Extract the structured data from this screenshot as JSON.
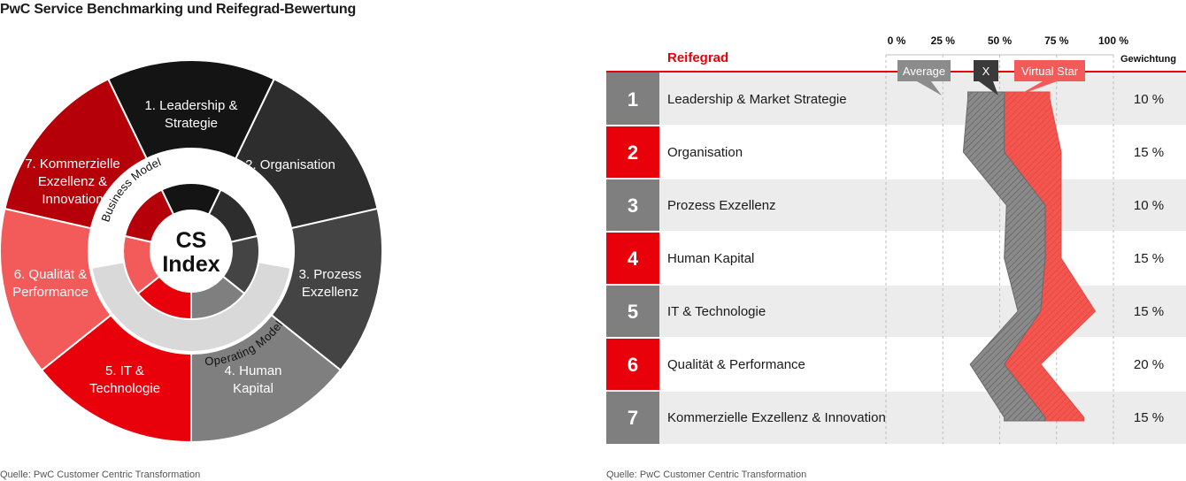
{
  "title": "PwC Service Benchmarking und Reifegrad-Bewertung",
  "source_left": "Quelle: PwC Customer Centric Transformation",
  "source_right": "Quelle: PwC Customer Centric Transformation",
  "colors": {
    "red": "#e8000b",
    "dark_red": "#b5000a",
    "light_red": "#f35a5a",
    "black": "#141414",
    "dark_gray": "#2d2d2d",
    "mid_gray": "#444444",
    "gray": "#7f7f7f",
    "light_gray": "#d9d9d9"
  },
  "donut": {
    "center_line1": "CS",
    "center_line2": "Index",
    "ring_label_top": "Business Model",
    "ring_label_bottom": "Operating Model",
    "segments": [
      {
        "line1": "1. Leadership &",
        "line2": "Strategie",
        "line3": ""
      },
      {
        "line1": "2. Organisation",
        "line2": "",
        "line3": ""
      },
      {
        "line1": "3. Prozess",
        "line2": "Exzellenz",
        "line3": ""
      },
      {
        "line1": "4. Human",
        "line2": "Kapital",
        "line3": ""
      },
      {
        "line1": "5. IT &",
        "line2": "Technologie",
        "line3": ""
      },
      {
        "line1": "6. Qualität &",
        "line2": "Performance",
        "line3": ""
      },
      {
        "line1": "7. Kommerzielle",
        "line2": "Exzellenz &",
        "line3": "Innovation"
      }
    ]
  },
  "table": {
    "header_reifegrad": "Reifegrad",
    "header_gewichtung": "Gewichtung",
    "legend": {
      "average": "Average",
      "x": "X",
      "virtual_star": "Virtual Star"
    },
    "rows": [
      {
        "num": "1",
        "label": "Leadership & Market Strategie",
        "weight": "10 %"
      },
      {
        "num": "2",
        "label": "Organisation",
        "weight": "15 %"
      },
      {
        "num": "3",
        "label": "Prozess Exzellenz",
        "weight": "10 %"
      },
      {
        "num": "4",
        "label": "Human Kapital",
        "weight": "15 %"
      },
      {
        "num": "5",
        "label": "IT & Technologie",
        "weight": "15 %"
      },
      {
        "num": "6",
        "label": "Qualität & Performance",
        "weight": "20 %"
      },
      {
        "num": "7",
        "label": "Kommerzielle Exzellenz & Innovation",
        "weight": "15 %"
      }
    ]
  },
  "chart_data": {
    "type": "area",
    "x_ticks": [
      "0 %",
      "25 %",
      "50 %",
      "75 %",
      "100 %"
    ],
    "xlim": [
      0,
      100
    ],
    "categories": [
      "1",
      "2",
      "3",
      "4",
      "5",
      "6",
      "7"
    ],
    "series": [
      {
        "name": "Average",
        "values": [
          36,
          34,
          53,
          52,
          58,
          37,
          52
        ]
      },
      {
        "name": "Virtual Star",
        "values": [
          72,
          77,
          77,
          77,
          92,
          68,
          87
        ]
      }
    ]
  }
}
